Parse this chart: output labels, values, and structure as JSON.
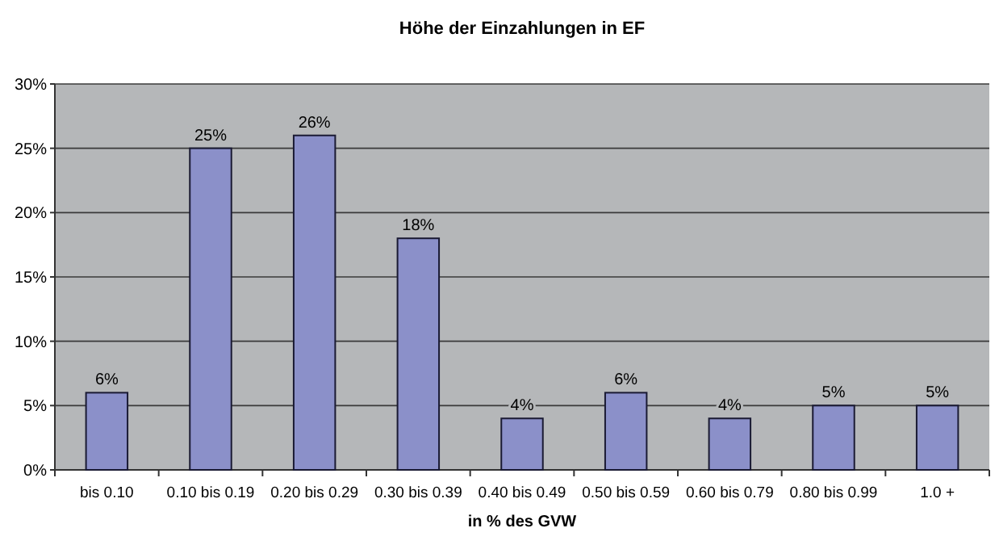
{
  "chart_data": {
    "type": "bar",
    "title": "Höhe der Einzahlungen in EF",
    "xlabel": "in % des GVW",
    "categories": [
      "bis 0.10",
      "0.10 bis 0.19",
      "0.20 bis 0.29",
      "0.30 bis 0.39",
      "0.40 bis 0.49",
      "0.50 bis 0.59",
      "0.60 bis 0.79",
      "0.80 bis 0.99",
      "1.0 +"
    ],
    "values": [
      6,
      25,
      26,
      18,
      4,
      6,
      4,
      5,
      5
    ],
    "value_labels": [
      "6%",
      "25%",
      "26%",
      "18%",
      "4%",
      "6%",
      "4%",
      "5%",
      "5%"
    ],
    "color": "#8b90c9",
    "ylim": [
      0,
      30
    ],
    "yticks": [
      {
        "value": 0,
        "label": "0%"
      },
      {
        "value": 5,
        "label": "5%"
      },
      {
        "value": 10,
        "label": "10%"
      },
      {
        "value": 15,
        "label": "15%"
      },
      {
        "value": 20,
        "label": "20%"
      },
      {
        "value": 25,
        "label": "25%"
      },
      {
        "value": 30,
        "label": "30%"
      }
    ],
    "grid": "y"
  }
}
